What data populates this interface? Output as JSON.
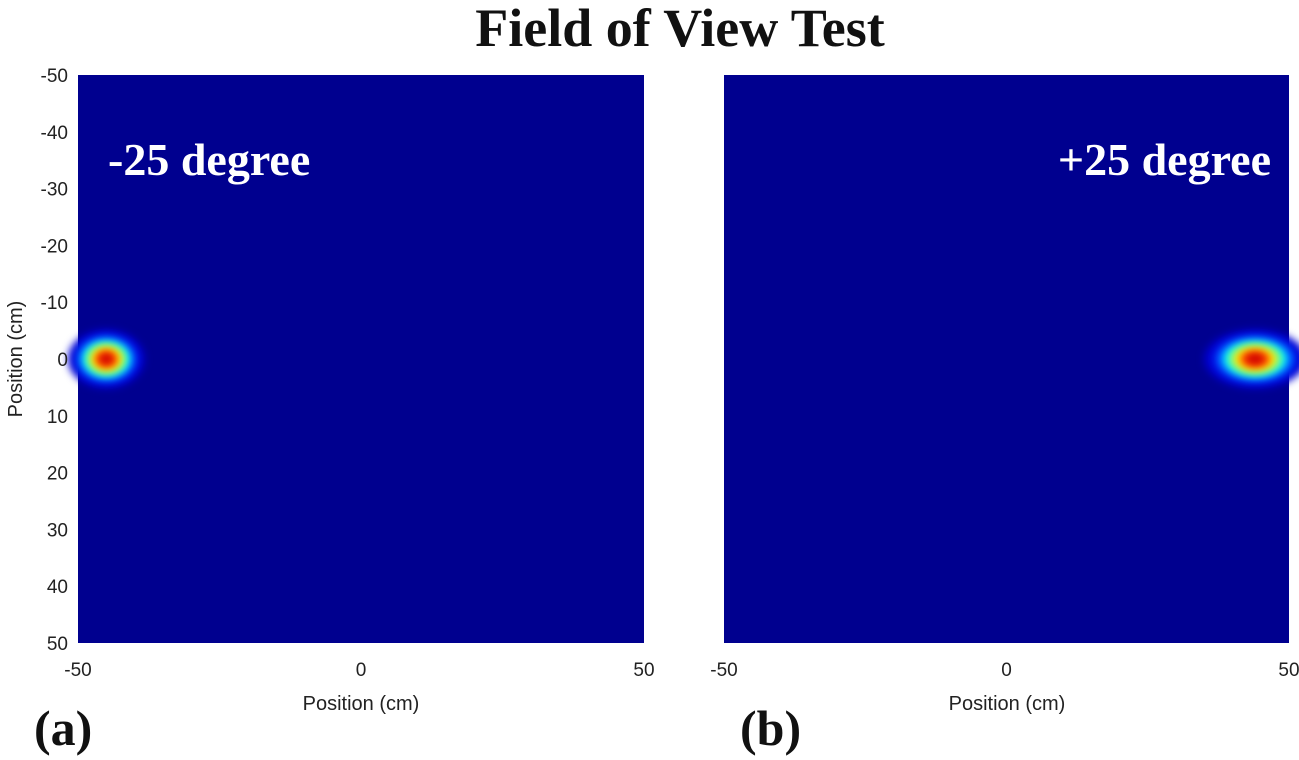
{
  "figure": {
    "title": "Field of View Test"
  },
  "colors": {
    "background": "#00008f",
    "colormap": "jet"
  },
  "chart_data": [
    {
      "type": "heatmap",
      "panel_label": "(a)",
      "annotation": "-25 degree",
      "xlabel": "Position (cm)",
      "ylabel": "Position (cm)",
      "xlim": [
        -50,
        50
      ],
      "ylim": [
        -50,
        50
      ],
      "y_reversed": true,
      "xticks": [
        -50,
        0,
        50
      ],
      "yticks": [
        -50,
        -40,
        -30,
        -20,
        -10,
        0,
        10,
        20,
        30,
        40,
        50
      ],
      "hotspot": {
        "x": -45,
        "y": 0,
        "peak": 1.0,
        "sigma_x": 3,
        "sigma_y": 2.3
      }
    },
    {
      "type": "heatmap",
      "panel_label": "(b)",
      "annotation": "+25 degree",
      "xlabel": "Position (cm)",
      "ylabel": "",
      "xlim": [
        -50,
        50
      ],
      "ylim": [
        -50,
        50
      ],
      "y_reversed": true,
      "xticks": [
        -50,
        0,
        50
      ],
      "yticks": [],
      "hotspot": {
        "x": 44,
        "y": 0,
        "peak": 1.0,
        "sigma_x": 4,
        "sigma_y": 2.3
      }
    }
  ]
}
